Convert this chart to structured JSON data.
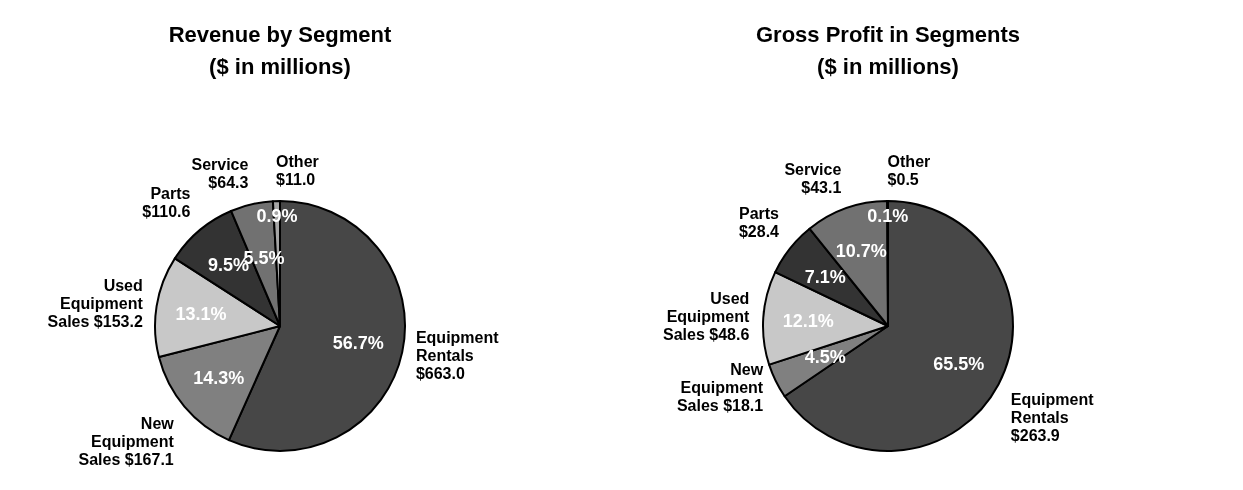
{
  "chart_data": [
    {
      "type": "pie",
      "title": "Revenue by Segment\n($ in millions)",
      "categories": [
        "Equipment\nRentals\n$663.0",
        "New\nEquipment\nSales $167.1",
        "Used\nEquipment\nSales $153.2",
        "Parts\n$110.6",
        "Service\n$64.3",
        "Other\n$11.0"
      ],
      "values": [
        56.7,
        14.3,
        13.1,
        9.5,
        5.5,
        0.9
      ],
      "colors": [
        "#474747",
        "#808080",
        "#c8c8c8",
        "#333333",
        "#717171",
        "#a6a6a6"
      ],
      "value_labels": [
        "56.7%",
        "14.3%",
        "13.1%",
        "9.5%",
        "5.5%",
        "0.9%"
      ]
    },
    {
      "type": "pie",
      "title": "Gross Profit in Segments\n($ in millions)",
      "categories": [
        "Equipment\nRentals\n$263.9",
        "New\nEquipment\nSales $18.1",
        "Used\nEquipment\nSales $48.6",
        "Parts\n$28.4",
        "Service\n$43.1",
        "Other\n$0.5"
      ],
      "values": [
        65.5,
        4.5,
        12.1,
        7.1,
        10.7,
        0.1
      ],
      "colors": [
        "#474747",
        "#808080",
        "#c8c8c8",
        "#333333",
        "#717171",
        "#a6a6a6"
      ],
      "value_labels": [
        "65.5%",
        "4.5%",
        "12.1%",
        "7.1%",
        "10.7%",
        "0.1%"
      ]
    }
  ]
}
